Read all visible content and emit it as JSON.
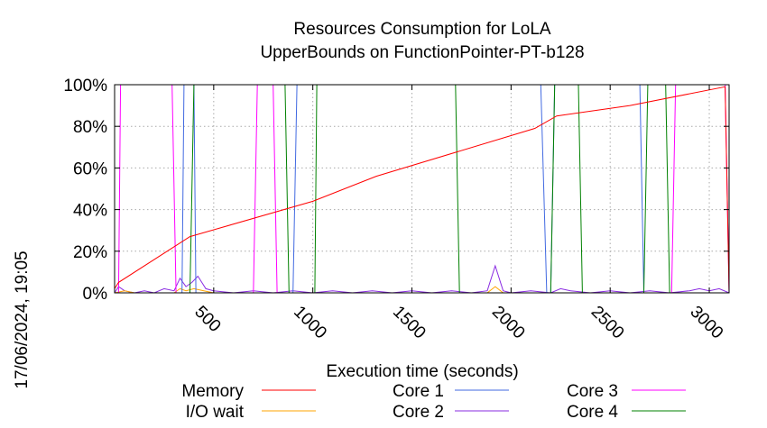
{
  "chart_data": {
    "type": "line",
    "title": "Resources Consumption for LoLA",
    "subtitle": "UpperBounds on FunctionPointer-PT-b128",
    "xlabel": "Execution time (seconds)",
    "ylabel": "",
    "side_label": "17/06/2024, 19:05",
    "xlim": [
      0,
      3100
    ],
    "ylim": [
      0,
      100
    ],
    "x_ticks": [
      500,
      1000,
      1500,
      2000,
      2500,
      3000
    ],
    "x_tick_labels": [
      "500",
      "1000",
      "1500",
      "2000",
      "2500",
      "3000"
    ],
    "y_ticks": [
      0,
      20,
      40,
      60,
      80,
      100
    ],
    "y_tick_labels": [
      "0%",
      "20%",
      "40%",
      "60%",
      "80%",
      "100%"
    ],
    "grid": true,
    "legend_position": "bottom",
    "series": [
      {
        "name": "Memory",
        "color": "#ff0000",
        "x": [
          0,
          20,
          380,
          1000,
          1320,
          2120,
          2230,
          2600,
          3080,
          3100
        ],
        "values": [
          2,
          5,
          27,
          44,
          56,
          79,
          85,
          90,
          99,
          0
        ]
      },
      {
        "name": "I/O wait",
        "color": "#ffa500",
        "x": [
          0,
          50,
          100,
          200,
          300,
          330,
          360,
          400,
          450,
          500,
          700,
          900,
          1100,
          1300,
          1500,
          1700,
          1880,
          1920,
          1960,
          2100,
          2300,
          2500,
          2700,
          2900,
          3100
        ],
        "values": [
          0,
          1,
          0,
          0,
          0,
          2,
          1,
          2,
          1,
          0,
          0,
          0,
          0,
          0,
          0,
          0,
          0,
          3,
          0,
          0,
          0,
          0,
          0,
          0,
          0
        ]
      },
      {
        "name": "Core 1",
        "color": "#4169e1",
        "x": [
          0,
          340,
          350,
          400,
          410,
          880,
          900,
          920,
          2150,
          2180,
          2200,
          2220,
          2650,
          2670,
          3100
        ],
        "values": [
          0,
          0,
          100,
          100,
          0,
          0,
          0,
          100,
          100,
          0,
          0,
          100,
          100,
          0,
          0
        ]
      },
      {
        "name": "Core 2",
        "color": "#8a2be2",
        "x": [
          0,
          20,
          50,
          100,
          150,
          200,
          250,
          300,
          330,
          360,
          390,
          420,
          460,
          500,
          600,
          700,
          800,
          900,
          1000,
          1100,
          1200,
          1300,
          1400,
          1500,
          1600,
          1700,
          1800,
          1880,
          1920,
          1960,
          2000,
          2100,
          2200,
          2250,
          2300,
          2400,
          2500,
          2600,
          2700,
          2800,
          2900,
          2950,
          3000,
          3050,
          3100
        ],
        "values": [
          0,
          3,
          1,
          0,
          1,
          0,
          2,
          1,
          7,
          3,
          5,
          8,
          2,
          1,
          0,
          1,
          0,
          1,
          0,
          1,
          0,
          1,
          0,
          1,
          0,
          1,
          0,
          1,
          13,
          1,
          0,
          1,
          0,
          2,
          1,
          0,
          1,
          0,
          1,
          0,
          1,
          2,
          1,
          2,
          0
        ]
      },
      {
        "name": "Core 3",
        "color": "#ff00ff",
        "x": [
          0,
          20,
          30,
          290,
          310,
          700,
          720,
          800,
          820,
          2810,
          2830,
          3080,
          3100
        ],
        "values": [
          0,
          0,
          100,
          100,
          0,
          0,
          100,
          100,
          0,
          0,
          100,
          100,
          0
        ]
      },
      {
        "name": "Core 4",
        "color": "#008000",
        "x": [
          0,
          380,
          400,
          860,
          880,
          1010,
          1020,
          1720,
          1740,
          2200,
          2220,
          2340,
          2360,
          2670,
          2690,
          2780,
          2800,
          3100
        ],
        "values": [
          0,
          0,
          100,
          100,
          0,
          0,
          100,
          100,
          0,
          0,
          100,
          100,
          0,
          0,
          100,
          100,
          0,
          0
        ]
      }
    ]
  }
}
